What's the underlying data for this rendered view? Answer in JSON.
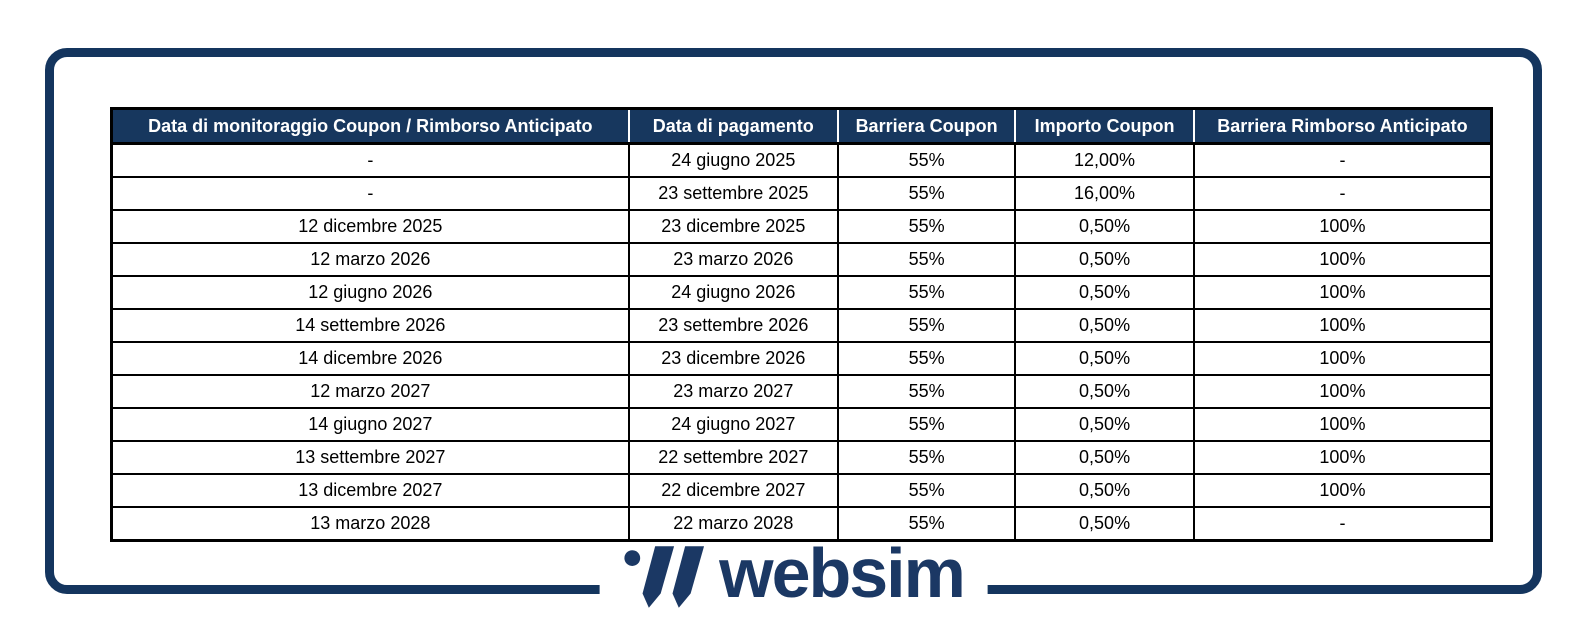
{
  "theme": {
    "background": "#FFFFFF",
    "border_color": "#14355E",
    "header_bg": "#17375E",
    "header_text": "#FFFFFF",
    "cell_text": "#000000",
    "table_border": "#000000",
    "logo_color": "#1B3864"
  },
  "logo": {
    "text": "websim"
  },
  "chart_data": {
    "type": "table",
    "columns": [
      "Data di monitoraggio Coupon / Rimborso Anticipato",
      "Data di pagamento",
      "Barriera Coupon",
      "Importo Coupon",
      "Barriera Rimborso Anticipato"
    ],
    "rows": [
      [
        "-",
        "24 giugno 2025",
        "55%",
        "12,00%",
        "-"
      ],
      [
        "-",
        "23 settembre 2025",
        "55%",
        "16,00%",
        "-"
      ],
      [
        "12 dicembre 2025",
        "23 dicembre 2025",
        "55%",
        "0,50%",
        "100%"
      ],
      [
        "12 marzo 2026",
        "23 marzo 2026",
        "55%",
        "0,50%",
        "100%"
      ],
      [
        "12 giugno 2026",
        "24 giugno 2026",
        "55%",
        "0,50%",
        "100%"
      ],
      [
        "14 settembre 2026",
        "23 settembre 2026",
        "55%",
        "0,50%",
        "100%"
      ],
      [
        "14 dicembre 2026",
        "23 dicembre 2026",
        "55%",
        "0,50%",
        "100%"
      ],
      [
        "12 marzo 2027",
        "23 marzo 2027",
        "55%",
        "0,50%",
        "100%"
      ],
      [
        "14 giugno 2027",
        "24 giugno 2027",
        "55%",
        "0,50%",
        "100%"
      ],
      [
        "13 settembre 2027",
        "22 settembre 2027",
        "55%",
        "0,50%",
        "100%"
      ],
      [
        "13 dicembre 2027",
        "22 dicembre 2027",
        "55%",
        "0,50%",
        "100%"
      ],
      [
        "13 marzo 2028",
        "22 marzo 2028",
        "55%",
        "0,50%",
        "-"
      ]
    ]
  }
}
